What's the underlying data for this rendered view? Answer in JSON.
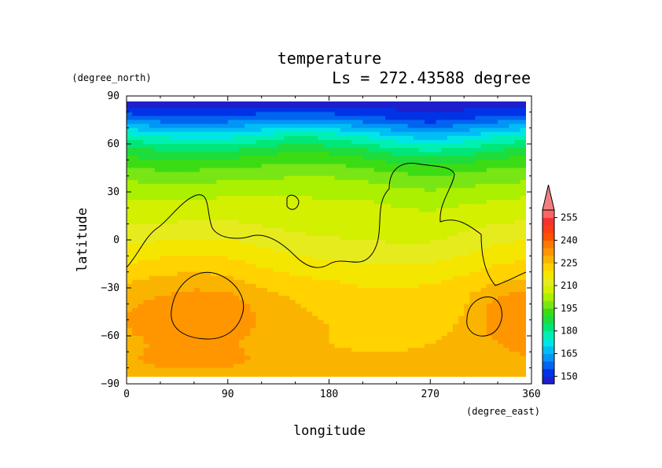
{
  "chart_data": {
    "type": "heatmap",
    "title": "temperature",
    "subtitle": "Ls = 272.43588 degree",
    "xlabel": "longitude",
    "ylabel": "latitude",
    "xunit": "(degree_east)",
    "yunit": "(degree_north)",
    "xlim": [
      0,
      360
    ],
    "ylim": [
      -90,
      90
    ],
    "xticks": [
      "0",
      "90",
      "180",
      "270",
      "360"
    ],
    "yticks": [
      "90",
      "60",
      "30",
      "0",
      "−30",
      "−60",
      "−90"
    ],
    "xtick_values": [
      0,
      90,
      180,
      270,
      360
    ],
    "ytick_values": [
      90,
      60,
      30,
      0,
      -30,
      -60,
      -90
    ],
    "colorbar": {
      "levels": [
        {
          "value": 145,
          "color": "#1e1ecd"
        },
        {
          "value": 150,
          "color": "#0032e6"
        },
        {
          "value": 155,
          "color": "#0064f0"
        },
        {
          "value": 160,
          "color": "#0096f5"
        },
        {
          "value": 165,
          "color": "#00bef5"
        },
        {
          "value": 170,
          "color": "#00e6e6"
        },
        {
          "value": 175,
          "color": "#00f0b4"
        },
        {
          "value": 180,
          "color": "#00e678"
        },
        {
          "value": 185,
          "color": "#1edc3c"
        },
        {
          "value": 190,
          "color": "#3cdc14"
        },
        {
          "value": 195,
          "color": "#78e614"
        },
        {
          "value": 200,
          "color": "#aaf000"
        },
        {
          "value": 205,
          "color": "#d2f000"
        },
        {
          "value": 210,
          "color": "#e6eb1e"
        },
        {
          "value": 215,
          "color": "#f5e600"
        },
        {
          "value": 220,
          "color": "#ffd200"
        },
        {
          "value": 225,
          "color": "#fab400"
        },
        {
          "value": 230,
          "color": "#ff9600"
        },
        {
          "value": 235,
          "color": "#ff7800"
        },
        {
          "value": 240,
          "color": "#ff5000"
        },
        {
          "value": 245,
          "color": "#ff3c14"
        },
        {
          "value": 250,
          "color": "#f53232"
        },
        {
          "value": 255,
          "color": "#ff6464"
        }
      ],
      "tick_labels": [
        "150",
        "165",
        "180",
        "195",
        "210",
        "225",
        "240",
        "255"
      ],
      "extend": "max"
    },
    "grid": false,
    "legend": "colorbar right",
    "field_description": "Zonal bands: ~145 K at 85N rising to ~225 K near -20 to -90, with warmer ~235 K blobs near 30-120E and 320-360E in the south; a wavy cold front near 60N.",
    "rows": [
      {
        "lat": 85,
        "vals": [
          147,
          147,
          147,
          147,
          147,
          147,
          147,
          147,
          147,
          147,
          147,
          147,
          147
        ]
      },
      {
        "lat": 75,
        "vals": [
          160,
          158,
          157,
          158,
          160,
          162,
          160,
          158,
          155,
          153,
          155,
          158,
          160
        ]
      },
      {
        "lat": 65,
        "vals": [
          178,
          174,
          172,
          173,
          176,
          180,
          178,
          174,
          170,
          167,
          170,
          174,
          178
        ]
      },
      {
        "lat": 55,
        "vals": [
          188,
          186,
          185,
          186,
          188,
          190,
          189,
          187,
          183,
          181,
          183,
          186,
          188
        ]
      },
      {
        "lat": 45,
        "vals": [
          195,
          194,
          194,
          195,
          196,
          197,
          197,
          195,
          193,
          192,
          193,
          195,
          196
        ]
      },
      {
        "lat": 35,
        "vals": [
          201,
          200,
          200,
          201,
          202,
          202,
          202,
          201,
          199,
          198,
          199,
          200,
          201
        ]
      },
      {
        "lat": 25,
        "vals": [
          205,
          205,
          205,
          206,
          206,
          206,
          205,
          205,
          204,
          203,
          204,
          205,
          206
        ]
      },
      {
        "lat": 15,
        "vals": [
          208,
          208,
          209,
          209,
          208,
          208,
          207,
          207,
          206,
          206,
          207,
          208,
          209
        ]
      },
      {
        "lat": 5,
        "vals": [
          212,
          212,
          213,
          213,
          211,
          210,
          209,
          209,
          208,
          208,
          210,
          212,
          213
        ]
      },
      {
        "lat": -5,
        "vals": [
          216,
          217,
          218,
          217,
          215,
          213,
          212,
          211,
          211,
          211,
          213,
          216,
          217
        ]
      },
      {
        "lat": -15,
        "vals": [
          220,
          222,
          223,
          222,
          219,
          217,
          216,
          215,
          215,
          215,
          217,
          220,
          221
        ]
      },
      {
        "lat": -25,
        "vals": [
          224,
          226,
          227,
          226,
          223,
          221,
          220,
          219,
          219,
          219,
          221,
          224,
          225
        ]
      },
      {
        "lat": -35,
        "vals": [
          228,
          230,
          232,
          231,
          227,
          224,
          222,
          221,
          221,
          222,
          224,
          230,
          232
        ]
      },
      {
        "lat": -45,
        "vals": [
          230,
          233,
          235,
          234,
          229,
          226,
          224,
          222,
          221,
          222,
          225,
          233,
          235
        ]
      },
      {
        "lat": -55,
        "vals": [
          230,
          233,
          234,
          233,
          229,
          227,
          225,
          223,
          222,
          223,
          226,
          232,
          234
        ]
      },
      {
        "lat": -65,
        "vals": [
          228,
          231,
          232,
          231,
          228,
          226,
          225,
          224,
          224,
          225,
          227,
          230,
          231
        ]
      },
      {
        "lat": -75,
        "vals": [
          229,
          232,
          233,
          232,
          229,
          227,
          226,
          226,
          226,
          226,
          227,
          229,
          230
        ]
      },
      {
        "lat": -85,
        "vals": [
          227,
          228,
          228,
          228,
          227,
          227,
          227,
          227,
          227,
          227,
          227,
          227,
          227
        ]
      }
    ],
    "row_lon_step": 30
  }
}
